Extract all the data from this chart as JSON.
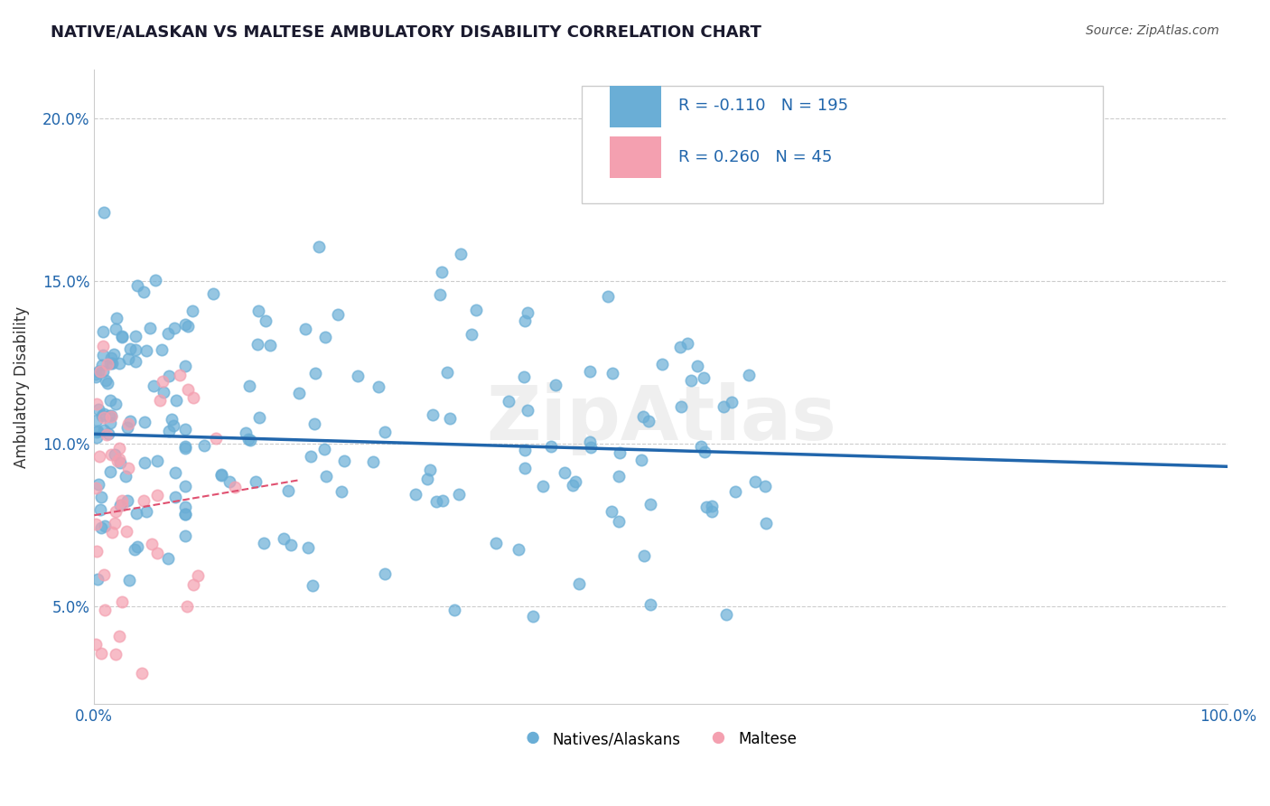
{
  "title": "NATIVE/ALASKAN VS MALTESE AMBULATORY DISABILITY CORRELATION CHART",
  "source": "Source: ZipAtlas.com",
  "ylabel": "Ambulatory Disability",
  "xlim": [
    0.0,
    1.0
  ],
  "ylim": [
    0.02,
    0.215
  ],
  "yticks": [
    0.05,
    0.1,
    0.15,
    0.2
  ],
  "ytick_labels": [
    "5.0%",
    "10.0%",
    "15.0%",
    "20.0%"
  ],
  "xticks": [
    0.0,
    1.0
  ],
  "xtick_labels": [
    "0.0%",
    "100.0%"
  ],
  "legend_label1": "Natives/Alaskans",
  "legend_label2": "Maltese",
  "blue_color": "#6aaed6",
  "pink_color": "#f4a0b0",
  "trend_blue_color": "#2166ac",
  "trend_pink_color": "#e05070",
  "watermark": "ZipAtlas",
  "R1": -0.11,
  "N1": 195,
  "R2": 0.26,
  "N2": 45,
  "blue_intercept": 0.103,
  "blue_slope": -0.01,
  "pink_intercept": 0.078,
  "pink_slope": 0.06,
  "background_color": "#ffffff",
  "grid_color": "#cccccc"
}
